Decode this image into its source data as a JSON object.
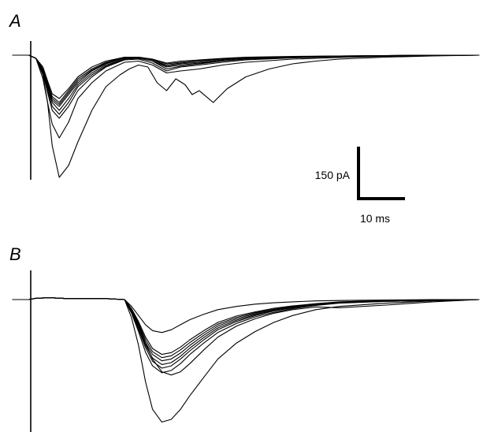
{
  "figure": {
    "panel_a_label": "A",
    "panel_b_label": "B",
    "scale_current_label": "150 pA",
    "scale_time_label": "10 ms",
    "trace_color": "#000000"
  },
  "chart_data": [
    {
      "type": "line",
      "panel": "A",
      "title": "",
      "xlabel": "",
      "ylabel": "",
      "x_unit": "ms",
      "y_unit": "pA",
      "xlim": [
        0,
        100
      ],
      "ylim": [
        -320,
        20
      ],
      "grid": false,
      "scale_bar": {
        "current_pA": 150,
        "time_ms": 10
      },
      "stimulus_artifact_ms": 3.5,
      "series": [
        {
          "x": [
            0,
            3.5,
            5,
            6.5,
            7.5,
            8.5,
            10,
            12,
            14,
            17,
            20,
            24,
            27,
            30,
            33,
            36,
            40,
            45,
            50,
            60,
            70,
            80,
            90,
            100
          ],
          "y": [
            0,
            0,
            -8,
            -60,
            -120,
            -175,
            -210,
            -170,
            -110,
            -70,
            -40,
            -18,
            -15,
            -25,
            -45,
            -40,
            -35,
            -25,
            -18,
            -10,
            -6,
            -3,
            -1,
            0
          ]
        },
        {
          "x": [
            0,
            3.5,
            5,
            6.5,
            7.5,
            8.5,
            10,
            12,
            14,
            17,
            20,
            24,
            27,
            30,
            33,
            36,
            40,
            45,
            50,
            60,
            70,
            80,
            90,
            100
          ],
          "y": [
            0,
            0,
            -8,
            -45,
            -95,
            -140,
            -160,
            -130,
            -90,
            -55,
            -30,
            -12,
            -10,
            -20,
            -40,
            -30,
            -25,
            -18,
            -12,
            -7,
            -4,
            -2,
            -1,
            0
          ]
        },
        {
          "x": [
            0,
            3.5,
            5,
            6.5,
            7.5,
            8.5,
            10,
            12,
            14,
            17,
            20,
            24,
            27,
            30,
            33,
            36,
            40,
            45,
            50,
            60,
            70,
            80,
            90,
            100
          ],
          "y": [
            0,
            0,
            -8,
            -45,
            -90,
            -130,
            -150,
            -120,
            -80,
            -50,
            -28,
            -10,
            -8,
            -15,
            -35,
            -28,
            -22,
            -15,
            -10,
            -6,
            -3,
            -2,
            -1,
            0
          ]
        },
        {
          "x": [
            0,
            3.5,
            5,
            6.5,
            7.5,
            8.5,
            10,
            12,
            14,
            17,
            20,
            24,
            27,
            30,
            33,
            36,
            40,
            45,
            50,
            60,
            70,
            80,
            90,
            100
          ],
          "y": [
            0,
            0,
            -8,
            -40,
            -85,
            -120,
            -140,
            -110,
            -75,
            -45,
            -25,
            -10,
            -8,
            -15,
            -30,
            -25,
            -20,
            -14,
            -10,
            -6,
            -3,
            -2,
            -1,
            0
          ]
        },
        {
          "x": [
            0,
            3.5,
            5,
            6.5,
            7.5,
            8.5,
            10,
            12,
            14,
            17,
            20,
            24,
            27,
            30,
            33,
            36,
            40,
            45,
            50,
            60,
            70,
            80,
            90,
            100
          ],
          "y": [
            0,
            0,
            -8,
            -40,
            -80,
            -115,
            -130,
            -100,
            -70,
            -40,
            -22,
            -8,
            -6,
            -12,
            -28,
            -22,
            -18,
            -12,
            -8,
            -5,
            -3,
            -2,
            -1,
            0
          ]
        },
        {
          "x": [
            0,
            3.5,
            5,
            6.5,
            7.5,
            8.5,
            10,
            12,
            14,
            17,
            20,
            24,
            27,
            30,
            33,
            36,
            40,
            45,
            50,
            60,
            70,
            80,
            90,
            100
          ],
          "y": [
            0,
            0,
            -8,
            -35,
            -75,
            -110,
            -125,
            -95,
            -65,
            -38,
            -20,
            -6,
            -5,
            -12,
            -25,
            -20,
            -15,
            -10,
            -7,
            -4,
            -2,
            -1,
            0,
            0
          ]
        },
        {
          "x": [
            0,
            3.5,
            5,
            6.5,
            7.5,
            8.5,
            10,
            12,
            14,
            17,
            20,
            24,
            27,
            30,
            33,
            36,
            40,
            45,
            50,
            60,
            70,
            80,
            90,
            100
          ],
          "y": [
            0,
            0,
            -8,
            -35,
            -70,
            -105,
            -120,
            -90,
            -60,
            -35,
            -18,
            -5,
            -5,
            -10,
            -22,
            -18,
            -14,
            -9,
            -6,
            -4,
            -2,
            -1,
            0,
            0
          ]
        },
        {
          "x": [
            0,
            3.5,
            5,
            6.5,
            7.5,
            8.5,
            10,
            12,
            14,
            17,
            20,
            24,
            27,
            30,
            33,
            36,
            40,
            45,
            50,
            60,
            70,
            80,
            90,
            100
          ],
          "y": [
            0,
            0,
            -8,
            -30,
            -65,
            -98,
            -110,
            -85,
            -55,
            -30,
            -15,
            -5,
            -5,
            -10,
            -20,
            -15,
            -12,
            -8,
            -5,
            -3,
            -2,
            -1,
            0,
            0
          ]
        },
        {
          "x": [
            0,
            3.5,
            5,
            6.5,
            7.5,
            8.5,
            10,
            12,
            14,
            17,
            20,
            23,
            25,
            27,
            29,
            31,
            33,
            35,
            37,
            38.5,
            40,
            43,
            46,
            50,
            55,
            60,
            65,
            70,
            80,
            90,
            100
          ],
          "y": [
            0,
            0,
            -8,
            -50,
            -120,
            -230,
            -310,
            -280,
            -220,
            -140,
            -80,
            -50,
            -35,
            -25,
            -30,
            -70,
            -90,
            -60,
            -75,
            -100,
            -90,
            -120,
            -85,
            -55,
            -35,
            -22,
            -15,
            -10,
            -5,
            -2,
            0
          ]
        }
      ]
    },
    {
      "type": "line",
      "panel": "B",
      "title": "",
      "xlabel": "",
      "ylabel": "",
      "x_unit": "ms",
      "y_unit": "pA",
      "xlim": [
        0,
        100
      ],
      "ylim": [
        -320,
        20
      ],
      "grid": false,
      "stimulus_artifact_ms": 3.5,
      "series": [
        {
          "x": [
            0,
            3.5,
            5,
            8,
            12,
            20,
            24,
            25.5,
            27,
            28.5,
            30,
            32,
            34,
            36,
            38,
            41,
            44,
            48,
            52,
            56,
            60,
            65,
            70,
            80,
            90,
            100
          ],
          "y": [
            0,
            0,
            3,
            4,
            2,
            2,
            0,
            -40,
            -100,
            -180,
            -240,
            -268,
            -262,
            -240,
            -210,
            -170,
            -130,
            -95,
            -70,
            -50,
            -35,
            -22,
            -15,
            -8,
            -3,
            0
          ]
        },
        {
          "x": [
            0,
            3.5,
            5,
            8,
            12,
            20,
            24,
            25.5,
            27,
            28.5,
            30,
            32,
            34,
            36,
            38,
            41,
            44,
            48,
            52,
            56,
            60,
            65,
            70,
            80,
            90,
            100
          ],
          "y": [
            0,
            0,
            3,
            4,
            2,
            2,
            0,
            -30,
            -70,
            -115,
            -145,
            -160,
            -155,
            -140,
            -120,
            -95,
            -72,
            -52,
            -38,
            -28,
            -20,
            -13,
            -8,
            -4,
            -2,
            0
          ]
        },
        {
          "x": [
            0,
            3.5,
            5,
            8,
            12,
            20,
            24,
            25.5,
            27,
            28.5,
            30,
            32,
            34,
            36,
            38,
            41,
            44,
            48,
            52,
            56,
            60,
            65,
            70,
            80,
            90,
            100
          ],
          "y": [
            0,
            0,
            3,
            4,
            2,
            2,
            0,
            -28,
            -65,
            -105,
            -135,
            -150,
            -145,
            -130,
            -112,
            -88,
            -66,
            -48,
            -35,
            -25,
            -18,
            -12,
            -7,
            -4,
            -2,
            0
          ]
        },
        {
          "x": [
            0,
            3.5,
            5,
            8,
            12,
            20,
            24,
            25.5,
            27,
            28.5,
            30,
            32,
            34,
            36,
            38,
            41,
            44,
            48,
            52,
            56,
            60,
            65,
            70,
            80,
            90,
            100
          ],
          "y": [
            0,
            0,
            3,
            4,
            2,
            2,
            0,
            -26,
            -60,
            -100,
            -128,
            -142,
            -138,
            -124,
            -106,
            -83,
            -62,
            -45,
            -33,
            -24,
            -17,
            -11,
            -7,
            -3,
            -1,
            0
          ]
        },
        {
          "x": [
            0,
            3.5,
            5,
            8,
            12,
            20,
            24,
            25.5,
            27,
            28.5,
            30,
            32,
            34,
            36,
            38,
            41,
            44,
            48,
            52,
            56,
            60,
            65,
            70,
            80,
            90,
            100
          ],
          "y": [
            0,
            0,
            3,
            4,
            2,
            2,
            0,
            -24,
            -56,
            -94,
            -120,
            -134,
            -130,
            -117,
            -100,
            -78,
            -58,
            -42,
            -31,
            -22,
            -16,
            -10,
            -6,
            -3,
            -1,
            0
          ]
        },
        {
          "x": [
            0,
            3.5,
            5,
            8,
            12,
            20,
            24,
            25.5,
            27,
            28.5,
            30,
            32,
            34,
            36,
            38,
            41,
            44,
            48,
            52,
            56,
            60,
            65,
            70,
            80,
            90,
            100
          ],
          "y": [
            0,
            0,
            3,
            4,
            2,
            2,
            0,
            -22,
            -52,
            -88,
            -114,
            -127,
            -123,
            -110,
            -94,
            -73,
            -54,
            -39,
            -29,
            -21,
            -15,
            -10,
            -6,
            -3,
            -1,
            0
          ]
        },
        {
          "x": [
            0,
            3.5,
            5,
            8,
            12,
            20,
            24,
            25.5,
            27,
            28.5,
            30,
            32,
            34,
            36,
            38,
            41,
            44,
            48,
            52,
            56,
            60,
            65,
            70,
            80,
            90,
            100
          ],
          "y": [
            0,
            0,
            3,
            4,
            2,
            2,
            0,
            -20,
            -48,
            -82,
            -107,
            -120,
            -116,
            -104,
            -88,
            -68,
            -50,
            -36,
            -27,
            -19,
            -14,
            -9,
            -5,
            -2,
            -1,
            0
          ]
        },
        {
          "x": [
            0,
            3.5,
            5,
            8,
            12,
            20,
            24,
            25.5,
            27,
            28.5,
            30,
            32,
            34,
            36,
            38,
            41,
            44,
            48,
            52,
            56,
            60,
            65,
            70,
            80,
            90,
            100
          ],
          "y": [
            0,
            0,
            3,
            4,
            2,
            2,
            0,
            -22,
            -55,
            -95,
            -130,
            -158,
            -165,
            -158,
            -140,
            -110,
            -82,
            -58,
            -42,
            -30,
            -22,
            -16,
            -18,
            -12,
            -5,
            0
          ]
        },
        {
          "x": [
            0,
            3.5,
            5,
            8,
            12,
            20,
            24,
            25.5,
            27,
            28.5,
            30,
            32,
            34,
            36,
            38,
            41,
            44,
            48,
            52,
            56,
            60,
            65,
            70,
            80,
            90,
            100
          ],
          "y": [
            0,
            0,
            3,
            4,
            2,
            2,
            0,
            -15,
            -35,
            -55,
            -68,
            -72,
            -66,
            -55,
            -44,
            -32,
            -22,
            -15,
            -10,
            -7,
            -5,
            -3,
            -2,
            -1,
            0,
            0
          ]
        }
      ]
    }
  ]
}
